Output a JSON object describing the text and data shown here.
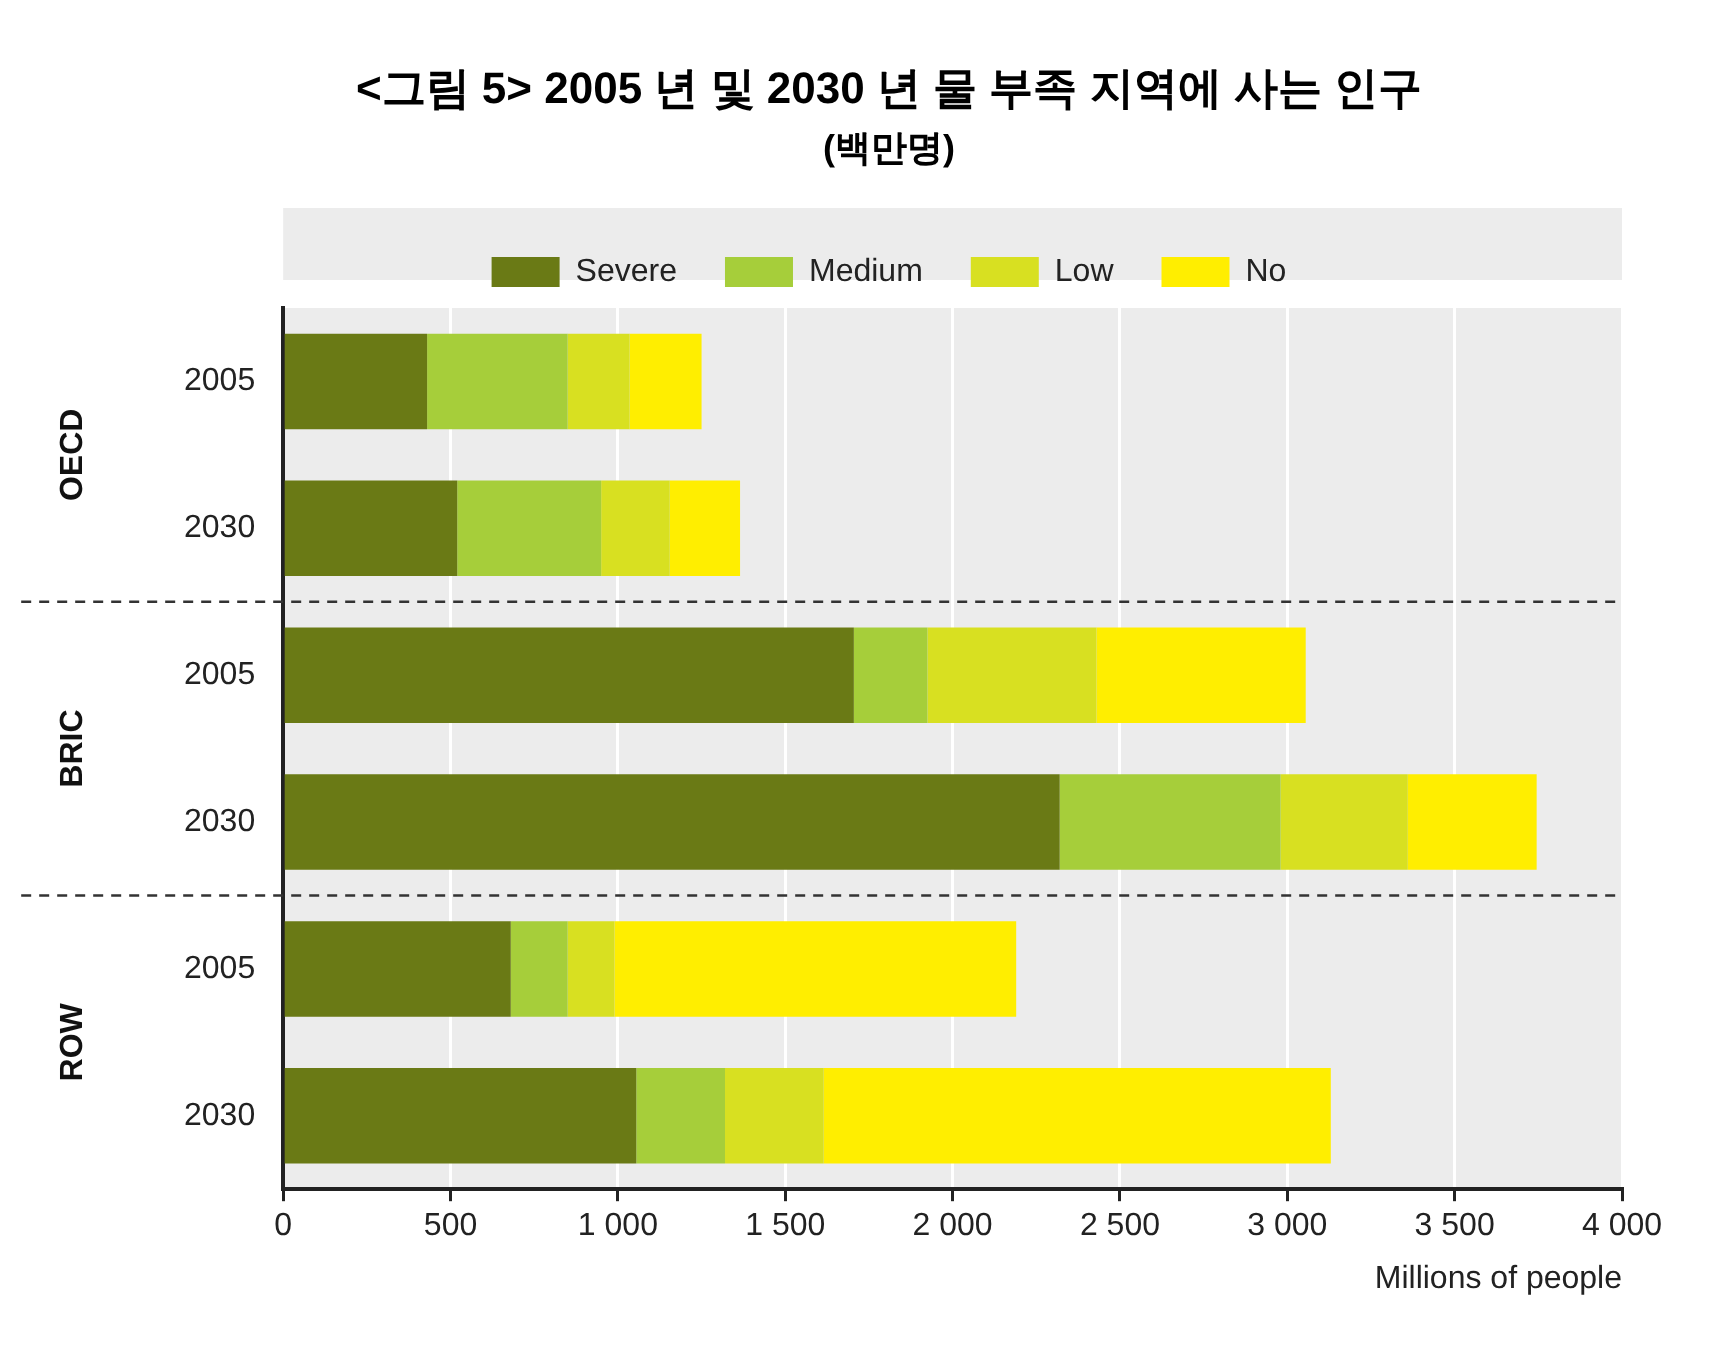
{
  "chart_data": {
    "type": "bar",
    "orientation": "horizontal",
    "stacked": true,
    "title": "<그림 5> 2005 년 및 2030 년 물 부족 지역에 사는 인구",
    "subtitle": "(백만명)",
    "xlabel": "Millions of people",
    "categories": [
      "2005",
      "2030",
      "2005",
      "2030",
      "2005",
      "2030"
    ],
    "annotations": [
      "OECD",
      "BRIC",
      "ROW"
    ],
    "series": [
      {
        "name": "Severe",
        "color": "#6a7a15",
        "values": [
          430,
          520,
          1705,
          2320,
          680,
          1055
        ]
      },
      {
        "name": "Medium",
        "color": "#a6ce3a",
        "values": [
          420,
          430,
          220,
          660,
          170,
          265
        ]
      },
      {
        "name": "Low",
        "color": "#d8e021",
        "values": [
          185,
          205,
          505,
          380,
          140,
          295
        ]
      },
      {
        "name": "No",
        "color": "#ffee00",
        "values": [
          215,
          210,
          625,
          385,
          1200,
          1515
        ]
      }
    ],
    "xlim": [
      0,
      4000
    ],
    "xticks": [
      0,
      500,
      {
        "value": 1000,
        "label": "1 000"
      },
      {
        "value": 1500,
        "label": "1 500"
      },
      {
        "value": 2000,
        "label": "2 000"
      },
      {
        "value": 2500,
        "label": "2 500"
      },
      {
        "value": 3000,
        "label": "3 000"
      },
      {
        "value": 3500,
        "label": "3 500"
      },
      {
        "value": 4000,
        "label": "4 000"
      }
    ],
    "grid": "x",
    "legend": "top"
  }
}
